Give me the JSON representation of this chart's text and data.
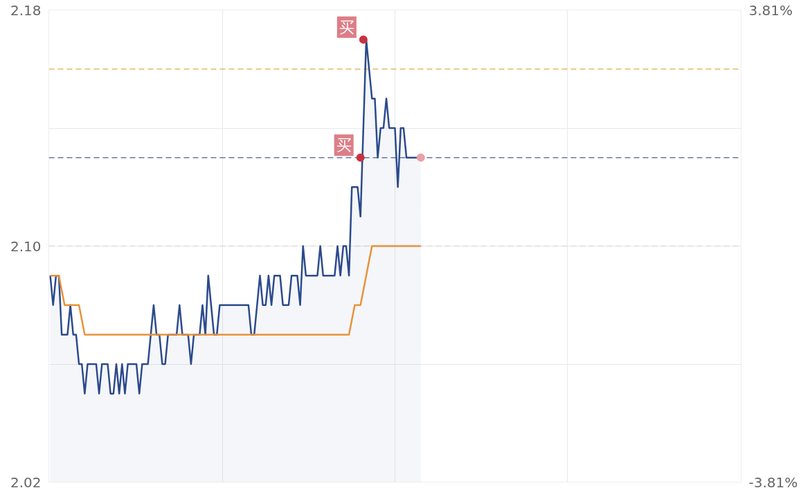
{
  "chart_data": {
    "type": "line",
    "categories": [
      null,
      null,
      null,
      null,
      null,
      null,
      null,
      null,
      null,
      null,
      null,
      null,
      null,
      null,
      null,
      null,
      null,
      null,
      null,
      null,
      null,
      null,
      null,
      null,
      null,
      null,
      null,
      null,
      null,
      null,
      null,
      null,
      null,
      null,
      null,
      null,
      null,
      null,
      null,
      null,
      null,
      null,
      null,
      null,
      null,
      null,
      null,
      null,
      null,
      null,
      null,
      null,
      null,
      null,
      null,
      null,
      null,
      null,
      null,
      null,
      null,
      null,
      null,
      null,
      null,
      null,
      null,
      null,
      null,
      null,
      null,
      null,
      null,
      null,
      null,
      null,
      null,
      null,
      null,
      null,
      null,
      null,
      null,
      null,
      null,
      null,
      null,
      null,
      null,
      null,
      null,
      null,
      null,
      null,
      null,
      null,
      null,
      null,
      null,
      null,
      null,
      null,
      null,
      null,
      null,
      null,
      null,
      null,
      null,
      null,
      null,
      null,
      null,
      null,
      null,
      null,
      null,
      null,
      null,
      null,
      null,
      null,
      null,
      null,
      null,
      null,
      null,
      null,
      null,
      null
    ],
    "ylim": [
      2.02,
      2.18
    ],
    "yticks": [
      {
        "value": 2.02,
        "label": "2.02"
      },
      {
        "value": 2.06,
        "label": null
      },
      {
        "value": 2.1,
        "label": "2.10"
      },
      {
        "value": 2.14,
        "label": null
      },
      {
        "value": 2.18,
        "label": "2.18"
      }
    ],
    "y2lim": [
      -3.81,
      3.81
    ],
    "y2ticks": [
      {
        "value": -3.81,
        "label": "-3.81%"
      },
      {
        "value": 3.81,
        "label": "3.81%"
      }
    ],
    "tick_labels": "y",
    "grid": true,
    "series": [
      {
        "type": "area",
        "color": "#2c4a8c",
        "values": [
          2.09,
          2.08,
          2.09,
          2.09,
          2.07,
          2.07,
          2.07,
          2.08,
          2.07,
          2.07,
          2.06,
          2.06,
          2.05,
          2.06,
          2.06,
          2.06,
          2.06,
          2.05,
          2.06,
          2.06,
          2.06,
          2.05,
          2.05,
          2.06,
          2.05,
          2.06,
          2.05,
          2.06,
          2.06,
          2.06,
          2.06,
          2.05,
          2.06,
          2.06,
          2.06,
          2.07,
          2.08,
          2.07,
          2.07,
          2.06,
          2.06,
          2.07,
          2.07,
          2.07,
          2.07,
          2.08,
          2.07,
          2.07,
          2.07,
          2.06,
          2.07,
          2.07,
          2.07,
          2.08,
          2.07,
          2.09,
          2.08,
          2.07,
          2.07,
          2.08,
          2.08,
          2.08,
          2.08,
          2.08,
          2.08,
          2.08,
          2.08,
          2.08,
          2.08,
          2.08,
          2.07,
          2.07,
          2.08,
          2.09,
          2.08,
          2.08,
          2.09,
          2.08,
          2.09,
          2.09,
          2.09,
          2.08,
          2.08,
          2.08,
          2.09,
          2.09,
          2.09,
          2.08,
          2.1,
          2.09,
          2.09,
          2.09,
          2.09,
          2.09,
          2.1,
          2.09,
          2.09,
          2.09,
          2.09,
          2.09,
          2.1,
          2.09,
          2.1,
          2.1,
          2.09,
          2.12,
          2.12,
          2.12,
          2.11,
          2.14,
          2.17,
          2.16,
          2.15,
          2.15,
          2.13,
          2.14,
          2.14,
          2.15,
          2.14,
          2.14,
          2.14,
          2.12,
          2.14,
          2.14,
          2.13,
          2.13,
          2.13,
          2.13,
          2.13,
          2.13
        ]
      },
      {
        "color": "#e8923a",
        "values": [
          2.09,
          2.09,
          2.09,
          2.09,
          2.085,
          2.08,
          2.08,
          2.08,
          2.08,
          2.08,
          2.08,
          2.075,
          2.07,
          2.07,
          2.07,
          2.07,
          2.07,
          2.07,
          2.07,
          2.07,
          2.07,
          2.07,
          2.07,
          2.07,
          2.07,
          2.07,
          2.07,
          2.07,
          2.07,
          2.07,
          2.07,
          2.07,
          2.07,
          2.07,
          2.07,
          2.07,
          2.07,
          2.07,
          2.07,
          2.07,
          2.07,
          2.07,
          2.07,
          2.07,
          2.07,
          2.07,
          2.07,
          2.07,
          2.07,
          2.07,
          2.07,
          2.07,
          2.07,
          2.07,
          2.07,
          2.07,
          2.07,
          2.07,
          2.07,
          2.07,
          2.07,
          2.07,
          2.07,
          2.07,
          2.07,
          2.07,
          2.07,
          2.07,
          2.07,
          2.07,
          2.07,
          2.07,
          2.07,
          2.07,
          2.07,
          2.07,
          2.07,
          2.07,
          2.07,
          2.07,
          2.07,
          2.07,
          2.07,
          2.07,
          2.07,
          2.07,
          2.07,
          2.07,
          2.07,
          2.07,
          2.07,
          2.07,
          2.07,
          2.07,
          2.07,
          2.07,
          2.07,
          2.07,
          2.07,
          2.07,
          2.07,
          2.07,
          2.07,
          2.07,
          2.07,
          2.075,
          2.08,
          2.08,
          2.08,
          2.085,
          2.09,
          2.095,
          2.1,
          2.1,
          2.1,
          2.1,
          2.1,
          2.1,
          2.1,
          2.1,
          2.1,
          2.1,
          2.1,
          2.1,
          2.1,
          2.1,
          2.1,
          2.1,
          2.1,
          2.1
        ]
      },
      {
        "type": "scatter",
        "color": "#e9a0a6",
        "values": [
          null,
          null,
          null,
          null,
          null,
          null,
          null,
          null,
          null,
          null,
          null,
          null,
          null,
          null,
          null,
          null,
          null,
          null,
          null,
          null,
          null,
          null,
          null,
          null,
          null,
          null,
          null,
          null,
          null,
          null,
          null,
          null,
          null,
          null,
          null,
          null,
          null,
          null,
          null,
          null,
          null,
          null,
          null,
          null,
          null,
          null,
          null,
          null,
          null,
          null,
          null,
          null,
          null,
          null,
          null,
          null,
          null,
          null,
          null,
          null,
          null,
          null,
          null,
          null,
          null,
          null,
          null,
          null,
          null,
          null,
          null,
          null,
          null,
          null,
          null,
          null,
          null,
          null,
          null,
          null,
          null,
          null,
          null,
          null,
          null,
          null,
          null,
          null,
          null,
          null,
          null,
          null,
          null,
          null,
          null,
          null,
          null,
          null,
          null,
          null,
          null,
          null,
          null,
          null,
          null,
          null,
          null,
          null,
          null,
          null,
          null,
          null,
          null,
          null,
          null,
          null,
          null,
          null,
          null,
          null,
          null,
          null,
          null,
          null,
          null,
          null,
          null,
          null,
          null,
          2.13
        ]
      },
      {
        "type": "scatter",
        "color": "#c8323f",
        "values": [
          null,
          null,
          null,
          null,
          null,
          null,
          null,
          null,
          null,
          null,
          null,
          null,
          null,
          null,
          null,
          null,
          null,
          null,
          null,
          null,
          null,
          null,
          null,
          null,
          null,
          null,
          null,
          null,
          null,
          null,
          null,
          null,
          null,
          null,
          null,
          null,
          null,
          null,
          null,
          null,
          null,
          null,
          null,
          null,
          null,
          null,
          null,
          null,
          null,
          null,
          null,
          null,
          null,
          null,
          null,
          null,
          null,
          null,
          null,
          null,
          null,
          null,
          null,
          null,
          null,
          null,
          null,
          null,
          null,
          null,
          null,
          null,
          null,
          null,
          null,
          null,
          null,
          null,
          null,
          null,
          null,
          null,
          null,
          null,
          null,
          null,
          null,
          null,
          null,
          null,
          null,
          null,
          null,
          null,
          null,
          null,
          null,
          null,
          null,
          null,
          null,
          null,
          null,
          null,
          null,
          null,
          null,
          null,
          2.13,
          2.17,
          null,
          null,
          null,
          null,
          null,
          null,
          null,
          null,
          null,
          null,
          null,
          null,
          null,
          null,
          null,
          null,
          null,
          null,
          null,
          null
        ],
        "value_labels": [
          null,
          null,
          null,
          null,
          null,
          null,
          null,
          null,
          null,
          null,
          null,
          null,
          null,
          null,
          null,
          null,
          null,
          null,
          null,
          null,
          null,
          null,
          null,
          null,
          null,
          null,
          null,
          null,
          null,
          null,
          null,
          null,
          null,
          null,
          null,
          null,
          null,
          null,
          null,
          null,
          null,
          null,
          null,
          null,
          null,
          null,
          null,
          null,
          null,
          null,
          null,
          null,
          null,
          null,
          null,
          null,
          null,
          null,
          null,
          null,
          null,
          null,
          null,
          null,
          null,
          null,
          null,
          null,
          null,
          null,
          null,
          null,
          null,
          null,
          null,
          null,
          null,
          null,
          null,
          null,
          null,
          null,
          null,
          null,
          null,
          null,
          null,
          null,
          null,
          null,
          null,
          null,
          null,
          null,
          null,
          null,
          null,
          null,
          null,
          null,
          null,
          null,
          null,
          null,
          null,
          null,
          null,
          null,
          "买",
          "买",
          null,
          null,
          null,
          null,
          null,
          null,
          null,
          null,
          null,
          null,
          null,
          null,
          null,
          null,
          null,
          null,
          null,
          null,
          null,
          null
        ]
      }
    ],
    "ref_lines": [
      {
        "axis": "y",
        "value": 2.1,
        "color": "#dcdcdc",
        "line_style": "dashed"
      },
      {
        "axis": "y",
        "value": 2.13,
        "color": "#6b78a6",
        "line_style": "dashed"
      },
      {
        "axis": "y",
        "value": 2.16,
        "color": "#e6b866",
        "line_style": "dashed"
      }
    ]
  }
}
